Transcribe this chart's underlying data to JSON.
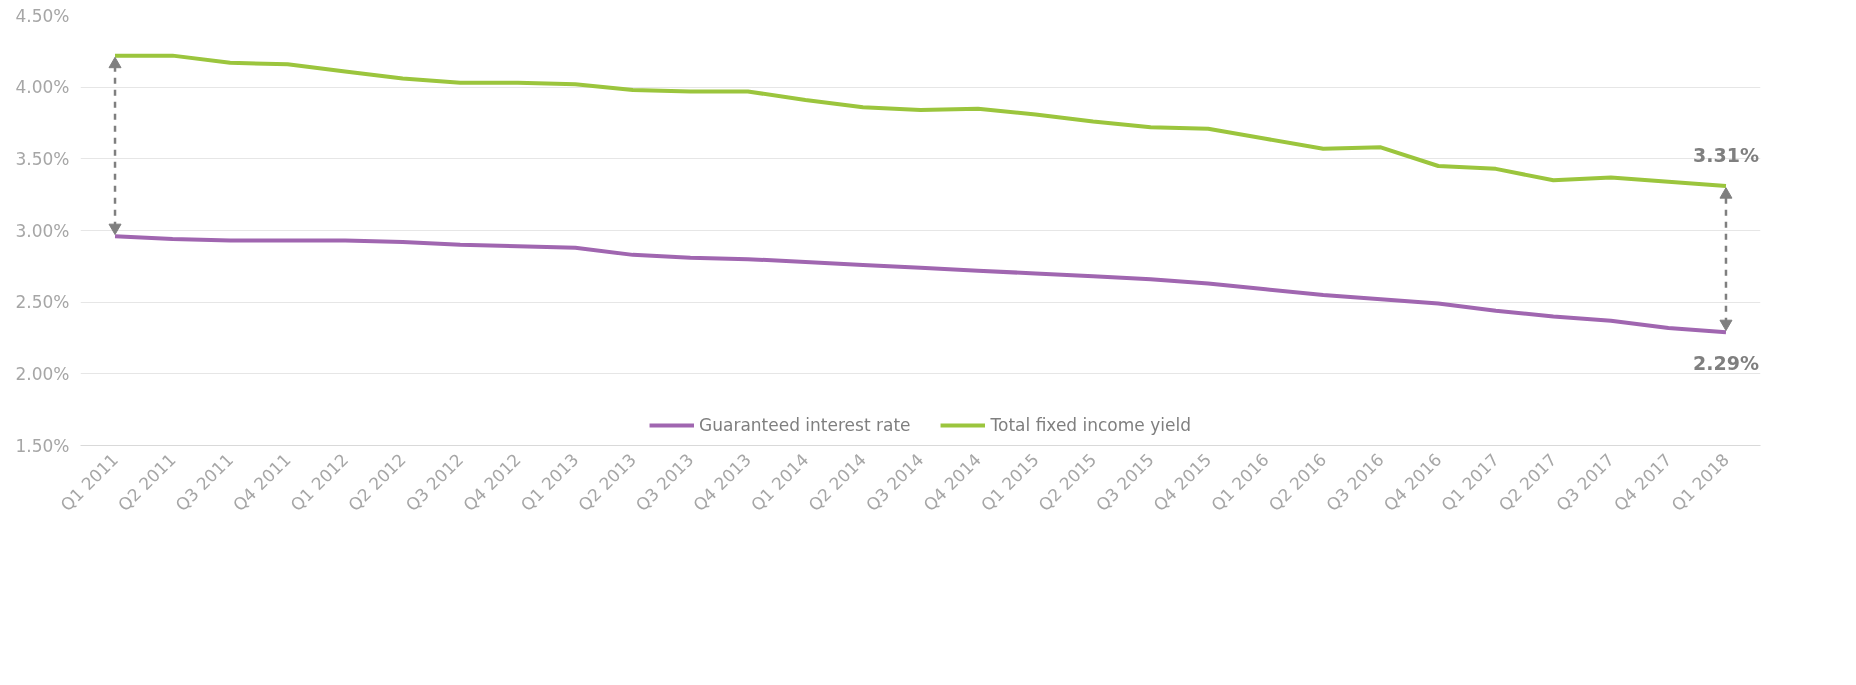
{
  "chart_data": {
    "type": "line",
    "categories": [
      "Q1 2011",
      "Q2 2011",
      "Q3 2011",
      "Q4 2011",
      "Q1 2012",
      "Q2 2012",
      "Q3 2012",
      "Q4 2012",
      "Q1 2013",
      "Q2 2013",
      "Q3 2013",
      "Q4 2013",
      "Q1 2014",
      "Q2 2014",
      "Q3 2014",
      "Q4 2014",
      "Q1 2015",
      "Q2 2015",
      "Q3 2015",
      "Q4 2015",
      "Q1 2016",
      "Q2 2016",
      "Q3 2016",
      "Q4 2016",
      "Q1 2017",
      "Q2 2017",
      "Q3 2017",
      "Q4 2017",
      "Q1 2018"
    ],
    "series": [
      {
        "name": "Guaranteed interest rate",
        "color": "#a066b0",
        "values": [
          2.96,
          2.94,
          2.93,
          2.93,
          2.93,
          2.92,
          2.9,
          2.89,
          2.88,
          2.83,
          2.81,
          2.8,
          2.78,
          2.76,
          2.74,
          2.72,
          2.7,
          2.68,
          2.66,
          2.63,
          2.59,
          2.55,
          2.52,
          2.49,
          2.44,
          2.4,
          2.37,
          2.32,
          2.29
        ],
        "value_labels": [
          null,
          null,
          null,
          null,
          null,
          null,
          null,
          null,
          null,
          null,
          null,
          null,
          null,
          null,
          null,
          null,
          null,
          null,
          null,
          null,
          null,
          null,
          null,
          null,
          null,
          null,
          null,
          null,
          "2.29%"
        ]
      },
      {
        "name": "Total fixed income yield",
        "color": "#9bc53d",
        "values": [
          4.22,
          4.22,
          4.17,
          4.16,
          4.11,
          4.06,
          4.03,
          4.03,
          4.02,
          3.98,
          3.97,
          3.97,
          3.91,
          3.86,
          3.84,
          3.85,
          3.81,
          3.76,
          3.72,
          3.71,
          3.64,
          3.57,
          3.58,
          3.45,
          3.43,
          3.35,
          3.37,
          3.34,
          3.31
        ],
        "value_labels": [
          null,
          null,
          null,
          null,
          null,
          null,
          null,
          null,
          null,
          null,
          null,
          null,
          null,
          null,
          null,
          null,
          null,
          null,
          null,
          null,
          null,
          null,
          null,
          null,
          null,
          null,
          null,
          null,
          "3.31%"
        ]
      }
    ],
    "ylim": [
      1.5,
      4.5
    ],
    "yticks": [
      {
        "value": 1.5,
        "label": "1.50%"
      },
      {
        "value": 2.0,
        "label": "2.00%"
      },
      {
        "value": 2.5,
        "label": "2.50%"
      },
      {
        "value": 3.0,
        "label": "3.00%"
      },
      {
        "value": 3.5,
        "label": "3.50%"
      },
      {
        "value": 4.0,
        "label": "4.00%"
      },
      {
        "value": 4.5,
        "label": "4.50%"
      }
    ],
    "grid": "y",
    "legend": "bottom",
    "marker": "none",
    "line_style": "solid"
  }
}
